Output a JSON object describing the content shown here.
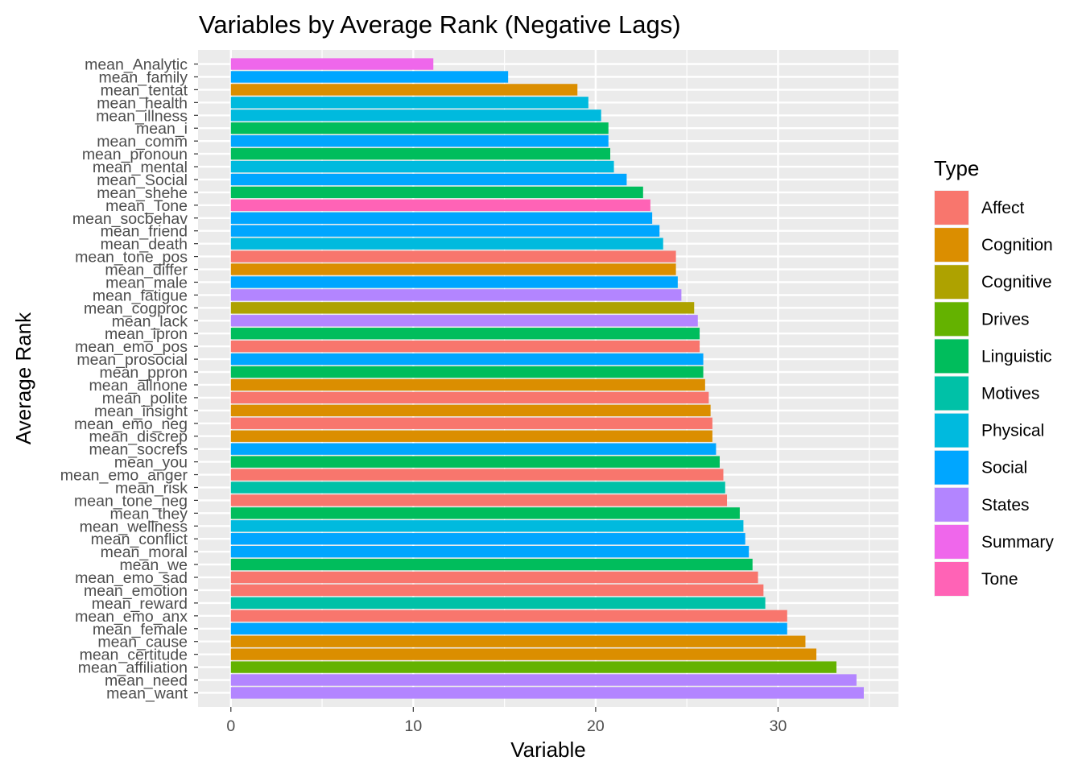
{
  "chart_data": {
    "type": "bar",
    "orientation": "horizontal",
    "title": "Variables by Average Rank (Negative Lags)",
    "xlabel": "Variable",
    "ylabel": "Average Rank",
    "xlim": [
      -1.8,
      36.6
    ],
    "xticks": [
      0,
      10,
      20,
      30
    ],
    "grid": true,
    "legend_title": "Type",
    "legend_position": "right",
    "legend": [
      {
        "name": "Affect",
        "color": "#F8766D"
      },
      {
        "name": "Cognition",
        "color": "#DB8E00"
      },
      {
        "name": "Cognitive",
        "color": "#AEA200"
      },
      {
        "name": "Drives",
        "color": "#64B200"
      },
      {
        "name": "Linguistic",
        "color": "#00BD5C"
      },
      {
        "name": "Motives",
        "color": "#00C1A7"
      },
      {
        "name": "Physical",
        "color": "#00BADE"
      },
      {
        "name": "Social",
        "color": "#00A6FF"
      },
      {
        "name": "States",
        "color": "#B385FF"
      },
      {
        "name": "Summary",
        "color": "#EF67EB"
      },
      {
        "name": "Tone",
        "color": "#FF63B6"
      }
    ],
    "bars": [
      {
        "label": "mean_Analytic",
        "value": 11.1,
        "type": "Summary"
      },
      {
        "label": "mean_family",
        "value": 15.2,
        "type": "Social"
      },
      {
        "label": "mean_tentat",
        "value": 19.0,
        "type": "Cognition"
      },
      {
        "label": "mean_health",
        "value": 19.6,
        "type": "Physical"
      },
      {
        "label": "mean_illness",
        "value": 20.3,
        "type": "Physical"
      },
      {
        "label": "mean_i",
        "value": 20.7,
        "type": "Linguistic"
      },
      {
        "label": "mean_comm",
        "value": 20.7,
        "type": "Social"
      },
      {
        "label": "mean_pronoun",
        "value": 20.8,
        "type": "Linguistic"
      },
      {
        "label": "mean_mental",
        "value": 21.0,
        "type": "Physical"
      },
      {
        "label": "mean_Social",
        "value": 21.7,
        "type": "Social"
      },
      {
        "label": "mean_shehe",
        "value": 22.6,
        "type": "Linguistic"
      },
      {
        "label": "mean_Tone",
        "value": 23.0,
        "type": "Tone"
      },
      {
        "label": "mean_socbehav",
        "value": 23.1,
        "type": "Social"
      },
      {
        "label": "mean_friend",
        "value": 23.5,
        "type": "Social"
      },
      {
        "label": "mean_death",
        "value": 23.7,
        "type": "Physical"
      },
      {
        "label": "mean_tone_pos",
        "value": 24.4,
        "type": "Affect"
      },
      {
        "label": "mean_differ",
        "value": 24.4,
        "type": "Cognition"
      },
      {
        "label": "mean_male",
        "value": 24.5,
        "type": "Social"
      },
      {
        "label": "mean_fatigue",
        "value": 24.7,
        "type": "States"
      },
      {
        "label": "mean_cogproc",
        "value": 25.4,
        "type": "Cognitive"
      },
      {
        "label": "mean_lack",
        "value": 25.6,
        "type": "States"
      },
      {
        "label": "mean_ipron",
        "value": 25.7,
        "type": "Linguistic"
      },
      {
        "label": "mean_emo_pos",
        "value": 25.7,
        "type": "Affect"
      },
      {
        "label": "mean_prosocial",
        "value": 25.9,
        "type": "Social"
      },
      {
        "label": "mean_ppron",
        "value": 25.9,
        "type": "Linguistic"
      },
      {
        "label": "mean_allnone",
        "value": 26.0,
        "type": "Cognition"
      },
      {
        "label": "mean_polite",
        "value": 26.2,
        "type": "Affect"
      },
      {
        "label": "mean_insight",
        "value": 26.3,
        "type": "Cognition"
      },
      {
        "label": "mean_emo_neg",
        "value": 26.4,
        "type": "Affect"
      },
      {
        "label": "mean_discrep",
        "value": 26.4,
        "type": "Cognition"
      },
      {
        "label": "mean_socrefs",
        "value": 26.6,
        "type": "Social"
      },
      {
        "label": "mean_you",
        "value": 26.8,
        "type": "Linguistic"
      },
      {
        "label": "mean_emo_anger",
        "value": 27.0,
        "type": "Affect"
      },
      {
        "label": "mean_risk",
        "value": 27.1,
        "type": "Motives"
      },
      {
        "label": "mean_tone_neg",
        "value": 27.2,
        "type": "Affect"
      },
      {
        "label": "mean_they",
        "value": 27.9,
        "type": "Linguistic"
      },
      {
        "label": "mean_wellness",
        "value": 28.1,
        "type": "Physical"
      },
      {
        "label": "mean_conflict",
        "value": 28.2,
        "type": "Social"
      },
      {
        "label": "mean_moral",
        "value": 28.4,
        "type": "Social"
      },
      {
        "label": "mean_we",
        "value": 28.6,
        "type": "Linguistic"
      },
      {
        "label": "mean_emo_sad",
        "value": 28.9,
        "type": "Affect"
      },
      {
        "label": "mean_emotion",
        "value": 29.2,
        "type": "Affect"
      },
      {
        "label": "mean_reward",
        "value": 29.3,
        "type": "Motives"
      },
      {
        "label": "mean_emo_anx",
        "value": 30.5,
        "type": "Affect"
      },
      {
        "label": "mean_female",
        "value": 30.5,
        "type": "Social"
      },
      {
        "label": "mean_cause",
        "value": 31.5,
        "type": "Cognition"
      },
      {
        "label": "mean_certitude",
        "value": 32.1,
        "type": "Cognition"
      },
      {
        "label": "mean_affiliation",
        "value": 33.2,
        "type": "Drives"
      },
      {
        "label": "mean_need",
        "value": 34.3,
        "type": "States"
      },
      {
        "label": "mean_want",
        "value": 34.7,
        "type": "States"
      }
    ]
  }
}
